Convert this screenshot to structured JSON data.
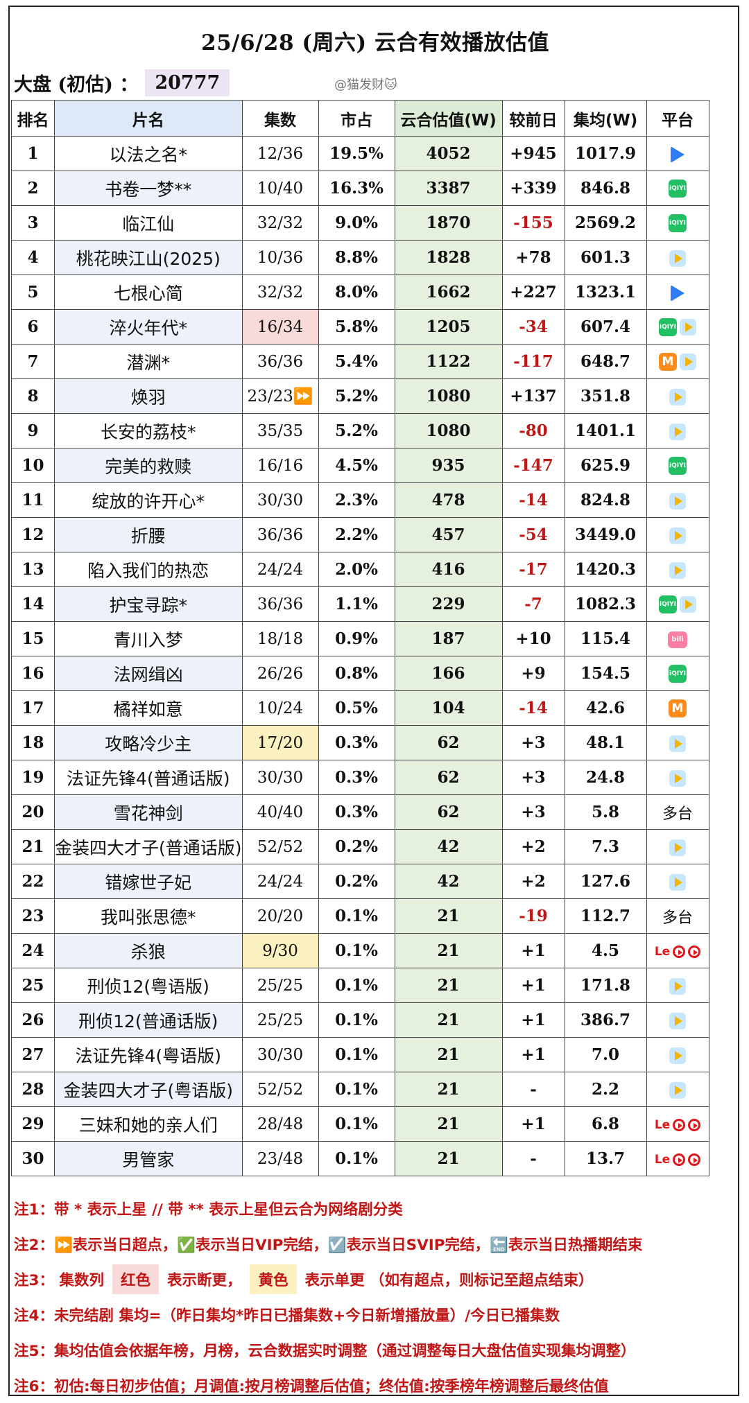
{
  "title": "25/6/28 (周六) 云合有效播放估值",
  "summary": {
    "label": "大盘 (初估) ：",
    "value": "20777"
  },
  "watermark": "@猫发财🐱",
  "headers": [
    "排名",
    "片名",
    "集数",
    "市占",
    "云合估值(W)",
    "较前日",
    "集均(W)",
    "平台"
  ],
  "rows": [
    {
      "rank": "1",
      "name": "以法之名*",
      "ep": "12/36",
      "share": "19.5%",
      "est": "4052",
      "delta": "+945",
      "avg": "1017.9",
      "platforms": [
        "tencent"
      ]
    },
    {
      "rank": "2",
      "name": "书卷一梦**",
      "ep": "10/40",
      "share": "16.3%",
      "est": "3387",
      "delta": "+339",
      "avg": "846.8",
      "platforms": [
        "iqiyi"
      ]
    },
    {
      "rank": "3",
      "name": "临江仙",
      "ep": "32/32",
      "share": "9.0%",
      "est": "1870",
      "delta": "-155",
      "avg": "2569.2",
      "platforms": [
        "iqiyi"
      ]
    },
    {
      "rank": "4",
      "name": "桃花映江山(2025)",
      "ep": "10/36",
      "share": "8.8%",
      "est": "1828",
      "delta": "+78",
      "avg": "601.3",
      "platforms": [
        "youku"
      ]
    },
    {
      "rank": "5",
      "name": "七根心简",
      "ep": "32/32",
      "share": "8.0%",
      "est": "1662",
      "delta": "+227",
      "avg": "1323.1",
      "platforms": [
        "tencent"
      ]
    },
    {
      "rank": "6",
      "name": "淬火年代*",
      "ep": "16/34",
      "ep_mark": "red",
      "share": "5.8%",
      "est": "1205",
      "delta": "-34",
      "avg": "607.4",
      "platforms": [
        "iqiyi",
        "youku"
      ]
    },
    {
      "rank": "7",
      "name": "潜渊*",
      "ep": "36/36",
      "share": "5.4%",
      "est": "1122",
      "delta": "-117",
      "avg": "648.7",
      "platforms": [
        "mango",
        "youku"
      ]
    },
    {
      "rank": "8",
      "name": "焕羽",
      "ep": "23/23⏩",
      "share": "5.2%",
      "est": "1080",
      "delta": "+137",
      "avg": "351.8",
      "platforms": [
        "youku"
      ]
    },
    {
      "rank": "9",
      "name": "长安的荔枝*",
      "ep": "35/35",
      "share": "5.2%",
      "est": "1080",
      "delta": "-80",
      "avg": "1401.1",
      "platforms": [
        "youku"
      ]
    },
    {
      "rank": "10",
      "name": "完美的救赎",
      "ep": "16/16",
      "share": "4.5%",
      "est": "935",
      "delta": "-147",
      "avg": "625.9",
      "platforms": [
        "iqiyi"
      ]
    },
    {
      "rank": "11",
      "name": "绽放的许开心*",
      "ep": "30/30",
      "share": "2.3%",
      "est": "478",
      "delta": "-14",
      "avg": "824.8",
      "platforms": [
        "youku"
      ]
    },
    {
      "rank": "12",
      "name": "折腰",
      "ep": "36/36",
      "share": "2.2%",
      "est": "457",
      "delta": "-54",
      "avg": "3449.0",
      "platforms": [
        "youku"
      ]
    },
    {
      "rank": "13",
      "name": "陷入我们的热恋",
      "ep": "24/24",
      "share": "2.0%",
      "est": "416",
      "delta": "-17",
      "avg": "1420.3",
      "platforms": [
        "youku"
      ]
    },
    {
      "rank": "14",
      "name": "护宝寻踪*",
      "ep": "36/36",
      "share": "1.1%",
      "est": "229",
      "delta": "-7",
      "avg": "1082.3",
      "platforms": [
        "iqiyi",
        "youku"
      ]
    },
    {
      "rank": "15",
      "name": "青川入梦",
      "ep": "18/18",
      "share": "0.9%",
      "est": "187",
      "delta": "+10",
      "avg": "115.4",
      "platforms": [
        "bilibili"
      ]
    },
    {
      "rank": "16",
      "name": "法网缉凶",
      "ep": "26/26",
      "share": "0.8%",
      "est": "166",
      "delta": "+9",
      "avg": "154.5",
      "platforms": [
        "iqiyi"
      ]
    },
    {
      "rank": "17",
      "name": "橘祥如意",
      "ep": "10/24",
      "share": "0.5%",
      "est": "104",
      "delta": "-14",
      "avg": "42.6",
      "platforms": [
        "mango"
      ]
    },
    {
      "rank": "18",
      "name": "攻略冷少主",
      "ep": "17/20",
      "ep_mark": "yellow",
      "share": "0.3%",
      "est": "62",
      "delta": "+3",
      "avg": "48.1",
      "platforms": [
        "youku"
      ]
    },
    {
      "rank": "19",
      "name": "法证先锋4(普通话版)",
      "ep": "30/30",
      "share": "0.3%",
      "est": "62",
      "delta": "+3",
      "avg": "24.8",
      "platforms": [
        "youku"
      ]
    },
    {
      "rank": "20",
      "name": "雪花神剑",
      "ep": "40/40",
      "share": "0.3%",
      "est": "62",
      "delta": "+3",
      "avg": "5.8",
      "platforms": [
        "多台"
      ]
    },
    {
      "rank": "21",
      "name": "金装四大才子(普通话版)",
      "ep": "52/52",
      "share": "0.2%",
      "est": "42",
      "delta": "+2",
      "avg": "7.3",
      "platforms": [
        "youku"
      ]
    },
    {
      "rank": "22",
      "name": "错嫁世子妃",
      "ep": "24/24",
      "share": "0.2%",
      "est": "42",
      "delta": "+2",
      "avg": "127.6",
      "platforms": [
        "youku"
      ]
    },
    {
      "rank": "23",
      "name": "我叫张思德*",
      "ep": "20/20",
      "share": "0.1%",
      "est": "21",
      "delta": "-19",
      "avg": "112.7",
      "platforms": [
        "多台"
      ]
    },
    {
      "rank": "24",
      "name": "杀狼",
      "ep": "9/30",
      "ep_mark": "yellow",
      "share": "0.1%",
      "est": "21",
      "delta": "+1",
      "avg": "4.5",
      "platforms": [
        "le"
      ]
    },
    {
      "rank": "25",
      "name": "刑侦12(粤语版)",
      "ep": "25/25",
      "share": "0.1%",
      "est": "21",
      "delta": "+1",
      "avg": "171.8",
      "platforms": [
        "youku"
      ]
    },
    {
      "rank": "26",
      "name": "刑侦12(普通话版)",
      "ep": "25/25",
      "share": "0.1%",
      "est": "21",
      "delta": "+1",
      "avg": "386.7",
      "platforms": [
        "youku"
      ]
    },
    {
      "rank": "27",
      "name": "法证先锋4(粤语版)",
      "ep": "30/30",
      "share": "0.1%",
      "est": "21",
      "delta": "+1",
      "avg": "7.0",
      "platforms": [
        "youku"
      ]
    },
    {
      "rank": "28",
      "name": "金装四大才子(粤语版)",
      "ep": "52/52",
      "share": "0.1%",
      "est": "21",
      "delta": "-",
      "avg": "2.2",
      "platforms": [
        "youku"
      ]
    },
    {
      "rank": "29",
      "name": "三妹和她的亲人们",
      "ep": "28/48",
      "share": "0.1%",
      "est": "21",
      "delta": "+1",
      "avg": "6.8",
      "platforms": [
        "le"
      ]
    },
    {
      "rank": "30",
      "name": "男管家",
      "ep": "23/48",
      "share": "0.1%",
      "est": "21",
      "delta": "-",
      "avg": "13.7",
      "platforms": [
        "le"
      ]
    }
  ],
  "notes": {
    "n1": "注1：带 * 表示上星 // 带 ** 表示上星但云合为网络剧分类",
    "n2": "注2：⏩表示当日超点，✅表示当日VIP完结，☑️表示当日SVIP完结，🔚表示当日热播期结束",
    "n3_prefix": "注3：   集数列",
    "n3_red": "红色",
    "n3_mid": "表示断更，",
    "n3_yellow": "黄色",
    "n3_suffix": "表示单更 （如有超点，则标记至超点结束）",
    "n4": "注4：未完结剧 集均=（昨日集均*昨日已播集数+今日新增播放量）/今日已播集数",
    "n5": "注5：集均估值会依据年榜，月榜，云合数据实时调整（通过调整每日大盘估值实现集均调整）",
    "n6": "注6：初估:每日初步估值；月调值:按月榜调整后估值；终估值:按季榜年榜调整后最终估值"
  },
  "colors": {
    "negative": "#c01616",
    "estimate_bg": "#e5f0df",
    "name_header_bg": "#dfe8f6",
    "break_mark": "#f9dada",
    "single_mark": "#fbf0c0"
  }
}
